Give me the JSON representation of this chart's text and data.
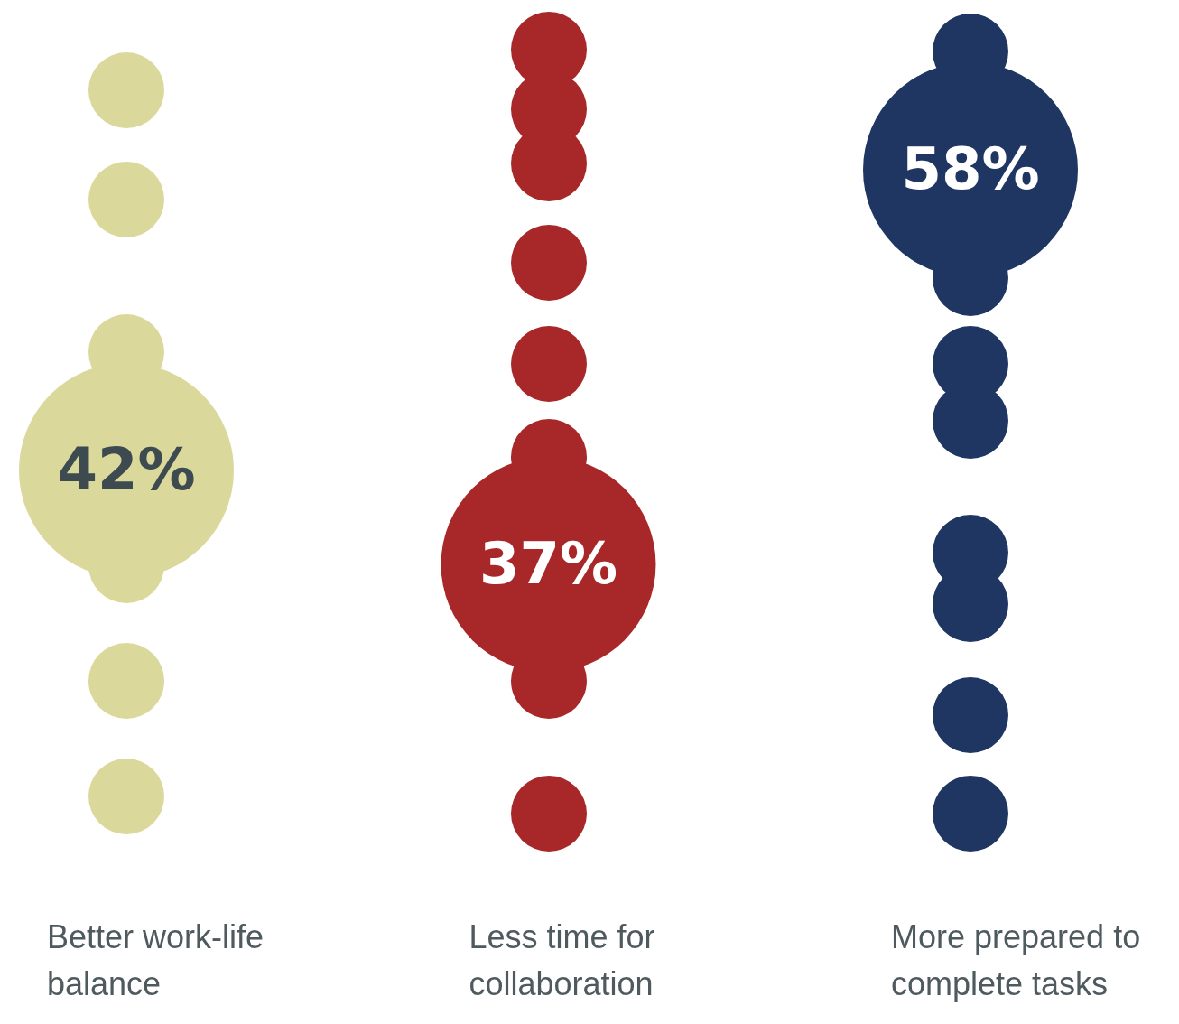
{
  "chart_data": {
    "type": "scatter",
    "categories": [
      "Better work-life balance",
      "Less time for collaboration",
      "More prepared to complete tasks"
    ],
    "values": [
      42,
      37,
      58
    ],
    "colors": [
      "#dbd89c",
      "#a8282a",
      "#1f3662"
    ],
    "value_labels": [
      "42%",
      "37%",
      "58%"
    ],
    "tick_labels": "x",
    "grid": false,
    "legend": false,
    "marker": "circle"
  }
}
